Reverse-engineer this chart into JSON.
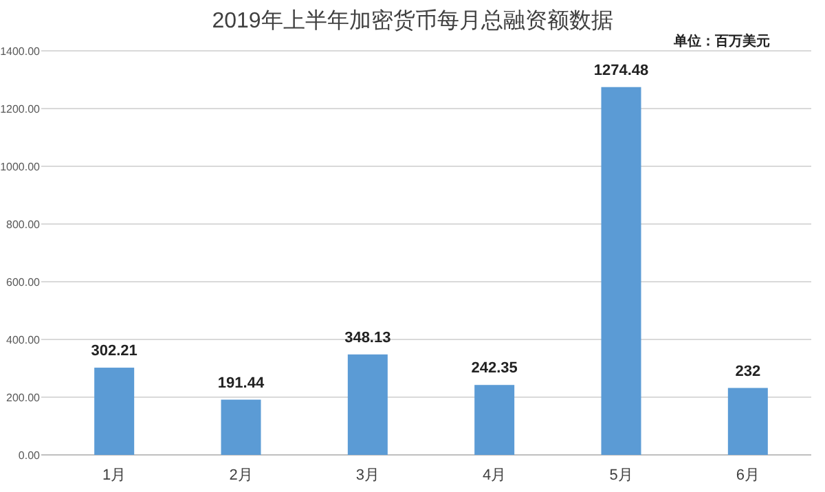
{
  "chart_data": {
    "type": "bar",
    "title": "2019年上半年加密货币每月总融资额数据",
    "annotations": [
      "单位：百万美元"
    ],
    "categories": [
      "1月",
      "2月",
      "3月",
      "4月",
      "5月",
      "6月"
    ],
    "values": [
      302.21,
      191.44,
      348.13,
      242.35,
      1274.48,
      232
    ],
    "color": "#5b9bd5",
    "ylim": [
      0,
      1400
    ],
    "yticks": [
      {
        "value": 0,
        "label": "0.00"
      },
      {
        "value": 200,
        "label": "200.00"
      },
      {
        "value": 400,
        "label": "400.00"
      },
      {
        "value": 600,
        "label": "600.00"
      },
      {
        "value": 800,
        "label": "800.00"
      },
      {
        "value": 1000,
        "label": "1000.00"
      },
      {
        "value": 1200,
        "label": "1200.00"
      },
      {
        "value": 1400,
        "label": "1400.00"
      }
    ],
    "grid": "y",
    "data_labels": true
  }
}
